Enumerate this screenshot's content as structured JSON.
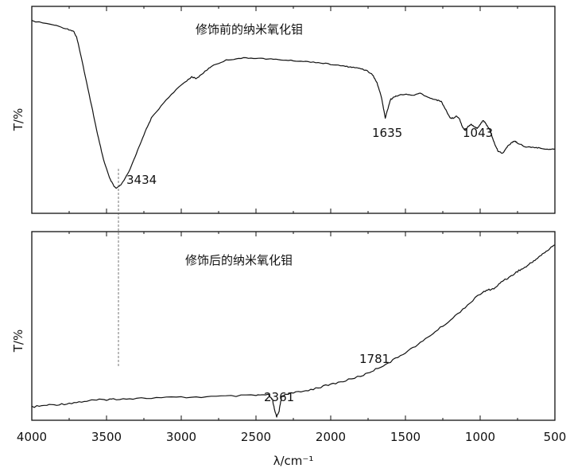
{
  "chart_data": [
    {
      "type": "line",
      "title": "修饰前的纳米氧化钼",
      "ylabel": "T/%",
      "xlim": [
        4000,
        500
      ],
      "x_reversed": true,
      "grid": false,
      "series": [
        {
          "x": [
            4000,
            3850,
            3760,
            3720,
            3700,
            3680,
            3650,
            3600,
            3560,
            3520,
            3480,
            3450,
            3434,
            3400,
            3350,
            3300,
            3250,
            3200,
            3100,
            3000,
            2930,
            2900,
            2850,
            2800,
            2700,
            2600,
            2500,
            2400,
            2300,
            2200,
            2100,
            2000,
            1900,
            1850,
            1800,
            1760,
            1720,
            1690,
            1660,
            1640,
            1635,
            1620,
            1600,
            1580,
            1550,
            1500,
            1450,
            1400,
            1350,
            1300,
            1260,
            1230,
            1200,
            1180,
            1160,
            1140,
            1120,
            1100,
            1080,
            1060,
            1043,
            1020,
            1000,
            980,
            960,
            940,
            920,
            900,
            880,
            850,
            830,
            810,
            790,
            770,
            750,
            720,
            700,
            650,
            600,
            550,
            500
          ],
          "y": [
            93,
            91,
            89,
            88,
            85,
            79,
            69,
            52,
            38,
            26,
            17,
            13,
            12,
            14,
            20,
            29,
            38,
            46,
            55,
            62,
            66,
            65,
            68,
            71,
            74,
            75,
            75,
            74.5,
            74,
            73.5,
            73,
            72,
            71,
            70.5,
            70,
            69,
            67,
            63,
            56,
            48,
            46,
            50,
            55,
            56,
            57,
            57.5,
            57,
            58,
            56,
            55,
            54,
            50,
            46,
            46,
            47,
            46,
            42,
            40,
            42,
            43,
            42,
            41,
            43,
            45,
            43,
            41,
            37,
            33,
            30,
            29,
            31,
            33,
            34,
            35,
            34,
            33,
            32,
            32,
            31.5,
            31,
            31
          ]
        }
      ],
      "annotations": [
        "3434",
        "1635",
        "1043"
      ]
    },
    {
      "type": "line",
      "title": "修饰后的纳米氧化钼",
      "ylabel": "T/%",
      "xlabel": "λ/cm⁻¹",
      "xlim": [
        4000,
        500
      ],
      "x_reversed": true,
      "xticks": [
        4000,
        3500,
        3000,
        2500,
        2000,
        1500,
        1000,
        500
      ],
      "grid": false,
      "series": [
        {
          "x": [
            4000,
            3900,
            3800,
            3700,
            3600,
            3500,
            3434,
            3300,
            3100,
            2900,
            2700,
            2500,
            2420,
            2390,
            2375,
            2361,
            2345,
            2330,
            2300,
            2200,
            2100,
            2000,
            1900,
            1781,
            1700,
            1600,
            1500,
            1400,
            1300,
            1200,
            1100,
            1000,
            950,
            900,
            850,
            800,
            750,
            700,
            650,
            600,
            550,
            500
          ],
          "y": [
            7,
            8,
            8.5,
            9.5,
            10.5,
            11,
            11.3,
            11.6,
            12,
            12.3,
            12.7,
            13.2,
            13.5,
            11,
            5,
            2,
            5,
            12,
            14,
            15,
            17,
            19,
            21,
            24,
            27,
            31,
            36,
            41,
            47,
            53,
            60,
            67,
            69,
            70,
            74,
            76,
            79,
            81,
            84,
            87,
            90,
            93
          ]
        }
      ],
      "annotations": [
        "2361",
        "1781"
      ]
    }
  ]
}
